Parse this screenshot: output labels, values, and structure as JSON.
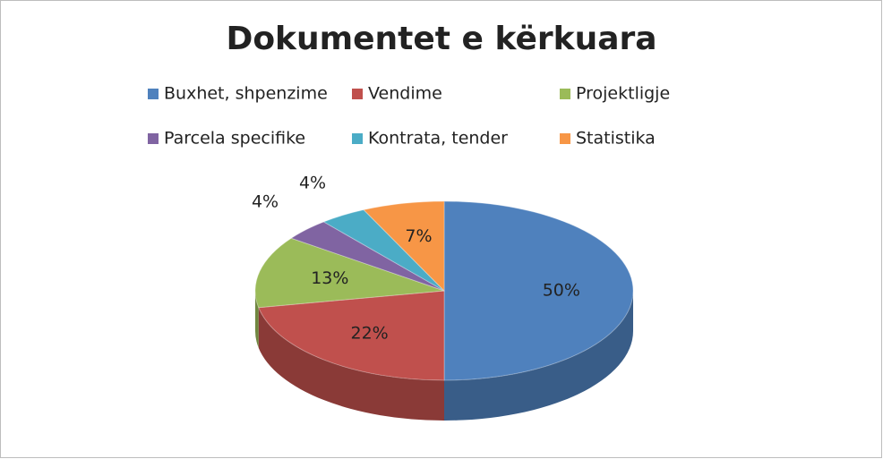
{
  "chart_data": {
    "type": "pie",
    "title": "Dokumentet e kërkuara",
    "categories": [
      "Buxhet, shpenzime",
      "Vendime",
      "Projektligje",
      "Parcela specifike",
      "Kontrata, tender",
      "Statistika"
    ],
    "values": [
      50,
      22,
      13,
      4,
      4,
      7
    ],
    "value_labels": [
      "50%",
      "22%",
      "13%",
      "4%",
      "4%",
      "7%"
    ],
    "colors": [
      "#4f81bd",
      "#c0504d",
      "#9bbb59",
      "#8064a2",
      "#4bacc6",
      "#f79646"
    ],
    "legend": "top"
  }
}
